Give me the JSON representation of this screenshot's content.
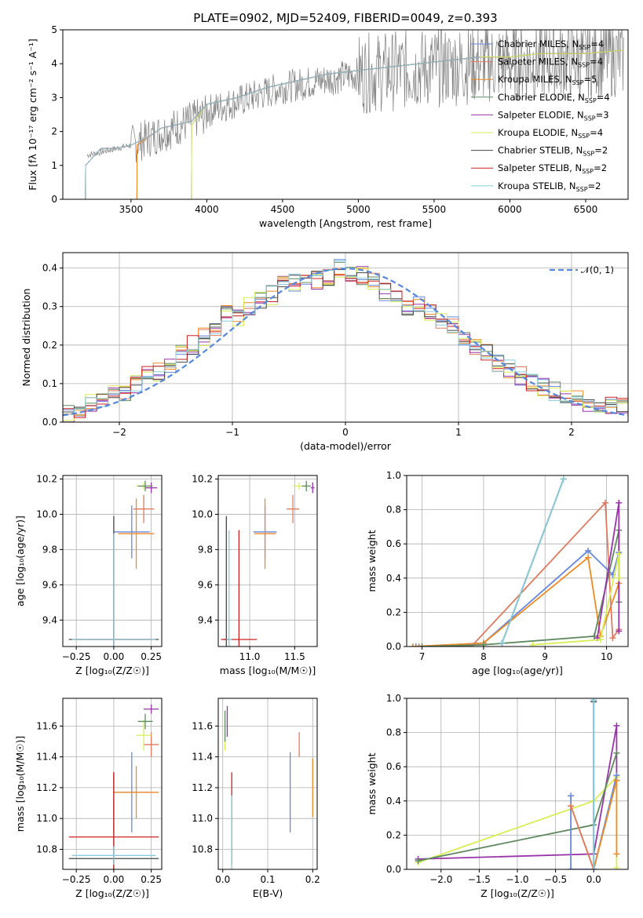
{
  "title": "PLATE=0902, MJD=52409, FIBERID=0049, z=0.393",
  "colors": {
    "Chabrier MILES": "#6688dd",
    "Salpeter MILES": "#e07a5f",
    "Kroupa MILES": "#f08a24",
    "Chabrier ELODIE": "#5f8a60",
    "Salpeter ELODIE": "#9933aa",
    "Kroupa ELODIE": "#d9ee55",
    "Chabrier STELIB": "#444444",
    "Salpeter STELIB": "#cc2222",
    "Kroupa STELIB": "#88ccdd",
    "data": "#808080",
    "normal": "#5588dd",
    "pink": "#e88ab5"
  },
  "chart_data": [
    {
      "type": "line",
      "title": "PLATE=0902, MJD=52409, FIBERID=0049, z=0.393",
      "xlabel": "wavelength [Angstrom, rest frame]",
      "ylabel": "Flux [f_λ 10^-17 erg cm^-2 s^-1 A^-1]",
      "xlim": [
        3050,
        6780
      ],
      "ylim": [
        0,
        5
      ],
      "xticks": [
        "3500",
        "4000",
        "4500",
        "5000",
        "5500",
        "6000",
        "6500"
      ],
      "yticks": [
        "0",
        "1",
        "2",
        "3",
        "4",
        "5"
      ],
      "series": [
        {
          "name": "Chabrier MILES, N_SSP=4",
          "x": [
            3540,
            3700,
            3800,
            3900,
            4000,
            4200,
            4400,
            4600,
            4800,
            5000,
            5200,
            5400,
            5600,
            5800
          ],
          "y": [
            1.6,
            2.1,
            2.2,
            2.3,
            2.8,
            3.0,
            3.3,
            3.5,
            3.7,
            3.8,
            3.9,
            4.0,
            4.1,
            4.2
          ]
        },
        {
          "name": "Salpeter MILES, N_SSP=4",
          "x": [
            3540,
            3700,
            3800,
            3900,
            4000,
            4200,
            4400,
            4600,
            4800,
            5000,
            5200,
            5400,
            5600,
            5800
          ],
          "y": [
            1.6,
            2.1,
            2.2,
            2.3,
            2.8,
            3.0,
            3.3,
            3.5,
            3.7,
            3.8,
            3.9,
            4.0,
            4.1,
            4.2
          ]
        },
        {
          "name": "Kroupa MILES, N_SSP=5",
          "x": [
            3540,
            3700,
            3800,
            3900,
            4000,
            4200,
            4400,
            4600,
            4800,
            5000,
            5200,
            5400,
            5600,
            5800
          ],
          "y": [
            1.6,
            2.1,
            2.2,
            2.3,
            2.8,
            3.0,
            3.3,
            3.5,
            3.7,
            3.8,
            3.9,
            4.0,
            4.1,
            4.2
          ]
        },
        {
          "name": "Chabrier ELODIE, N_SSP=4",
          "x": [
            3900,
            4000,
            4200,
            4400,
            4600,
            4800,
            5000,
            5200,
            5400,
            5600,
            5800,
            6000,
            6200,
            6500,
            6750
          ],
          "y": [
            2.2,
            2.8,
            3.0,
            3.3,
            3.5,
            3.7,
            3.8,
            3.9,
            4.0,
            4.1,
            4.2,
            4.2,
            4.3,
            4.3,
            4.4
          ]
        },
        {
          "name": "Salpeter ELODIE, N_SSP=3",
          "x": [
            3900,
            4000,
            4200,
            4400,
            4600,
            4800,
            5000,
            5200,
            5400,
            5600,
            5800,
            6000,
            6200,
            6500,
            6750
          ],
          "y": [
            2.2,
            2.8,
            3.0,
            3.3,
            3.5,
            3.7,
            3.8,
            3.9,
            4.0,
            4.1,
            4.2,
            4.2,
            4.3,
            4.3,
            4.4
          ]
        },
        {
          "name": "Kroupa ELODIE, N_SSP=4",
          "x": [
            3900,
            4000,
            4200,
            4400,
            4600,
            4800,
            5000,
            5200,
            5400,
            5600,
            5800,
            6000,
            6200,
            6500,
            6750
          ],
          "y": [
            2.2,
            2.8,
            3.0,
            3.3,
            3.5,
            3.7,
            3.8,
            3.9,
            4.0,
            4.1,
            4.2,
            4.2,
            4.3,
            4.3,
            4.4
          ]
        },
        {
          "name": "Chabrier STELIB, N_SSP=2",
          "x": [
            3200,
            3300,
            3400,
            3500,
            3600,
            3700,
            3800,
            3900,
            4000,
            4200,
            4400,
            4600,
            4800,
            5000,
            5200,
            5400,
            5600,
            5800
          ],
          "y": [
            1.0,
            1.5,
            1.5,
            1.6,
            1.8,
            2.1,
            2.2,
            2.3,
            2.8,
            3.0,
            3.3,
            3.5,
            3.7,
            3.8,
            3.9,
            4.0,
            4.1,
            4.2
          ]
        },
        {
          "name": "Salpeter STELIB, N_SSP=2",
          "x": [
            3200,
            3300,
            3400,
            3500,
            3600,
            3700,
            3800,
            3900,
            4000,
            4200,
            4400,
            4600,
            4800,
            5000,
            5200,
            5400,
            5600,
            5800
          ],
          "y": [
            1.0,
            1.5,
            1.5,
            1.6,
            1.8,
            2.1,
            2.2,
            2.3,
            2.8,
            3.0,
            3.3,
            3.5,
            3.7,
            3.8,
            3.9,
            4.0,
            4.1,
            4.2
          ]
        },
        {
          "name": "Kroupa STELIB, N_SSP=2",
          "x": [
            3200,
            3300,
            3400,
            3500,
            3600,
            3700,
            3800,
            3900,
            4000,
            4200,
            4400,
            4600,
            4800,
            5000,
            5200,
            5400,
            5600,
            5800
          ],
          "y": [
            1.0,
            1.5,
            1.5,
            1.6,
            1.8,
            2.1,
            2.2,
            2.3,
            2.8,
            3.0,
            3.3,
            3.5,
            3.7,
            3.8,
            3.9,
            4.0,
            4.1,
            4.2
          ]
        }
      ]
    },
    {
      "type": "line",
      "xlabel": "(data-model)/error",
      "ylabel": "Normed distribution",
      "xlim": [
        -2.5,
        2.5
      ],
      "ylim": [
        0,
        0.44
      ],
      "grid": true,
      "legend": "top-right",
      "legend_label": "𝒩(0, 1)",
      "xticks": [
        "−2",
        "−1",
        "0",
        "1",
        "2"
      ],
      "yticks": [
        "0.0",
        "0.1",
        "0.2",
        "0.3",
        "0.4"
      ],
      "histogram_bins": [
        -2.5,
        2.5,
        50
      ],
      "histogram_values": [
        0.02,
        0.03,
        0.05,
        0.05,
        0.07,
        0.08,
        0.1,
        0.12,
        0.13,
        0.15,
        0.18,
        0.2,
        0.22,
        0.24,
        0.28,
        0.27,
        0.3,
        0.32,
        0.33,
        0.36,
        0.36,
        0.38,
        0.37,
        0.38,
        0.4,
        0.39,
        0.38,
        0.37,
        0.34,
        0.33,
        0.3,
        0.31,
        0.28,
        0.26,
        0.25,
        0.22,
        0.2,
        0.18,
        0.15,
        0.14,
        0.12,
        0.1,
        0.09,
        0.08,
        0.07,
        0.06,
        0.05,
        0.05,
        0.04,
        0.04
      ]
    },
    {
      "type": "scatter",
      "xlabel": "Z [log10(Z/Z☉)]",
      "ylabel": "age  [log10(age/yr)]",
      "xlim": [
        -0.34,
        0.32
      ],
      "ylim": [
        9.25,
        10.22
      ],
      "grid": true,
      "xticks": [
        "−0.25",
        "0.00",
        "0.25"
      ],
      "yticks": [
        "9.4",
        "9.6",
        "9.8",
        "10.0",
        "10.2"
      ],
      "points": [
        {
          "series": "Chabrier MILES",
          "x": 0.12,
          "y": 9.9,
          "xerr": 0.12,
          "yerr": 0.15
        },
        {
          "series": "Kroupa MILES",
          "x": 0.15,
          "y": 9.89,
          "xerr": 0.12,
          "yerr": 0.2
        },
        {
          "series": "Kroupa ELODIE",
          "x": 0.2,
          "y": 10.16,
          "xerr": 0.05,
          "yerr": 0.02
        },
        {
          "series": "Salpeter ELODIE",
          "x": 0.25,
          "y": 10.15,
          "xerr": 0.04,
          "yerr": 0.03
        },
        {
          "series": "Salpeter MILES",
          "x": 0.2,
          "y": 10.03,
          "xerr": 0.07,
          "yerr": 0.08
        },
        {
          "series": "Chabrier ELODIE",
          "x": 0.21,
          "y": 10.16,
          "xerr": 0.05,
          "yerr": 0.03
        },
        {
          "series": "Chabrier STELIB",
          "x": 0.0,
          "y": 9.29,
          "xerr": 0.3,
          "yerr": 0.7
        },
        {
          "series": "Salpeter STELIB",
          "x": 0.0,
          "y": 9.29,
          "xerr": 0.25,
          "yerr": 0.6
        },
        {
          "series": "Kroupa STELIB",
          "x": 0.0,
          "y": 9.29,
          "xerr": 0.28,
          "yerr": 0.6
        }
      ]
    },
    {
      "type": "scatter",
      "xlabel": "mass [log10(M/M☉)]",
      "ylim": [
        9.25,
        10.22
      ],
      "xlim": [
        10.65,
        11.75
      ],
      "grid": true,
      "xticks": [
        "11.0",
        "11.5"
      ],
      "yticks": [
        "9.4",
        "9.6",
        "9.8",
        "10.0",
        "10.2"
      ],
      "points": [
        {
          "series": "Chabrier MILES",
          "x": 11.17,
          "y": 9.9,
          "xerr": 0.13,
          "yerr": 0.15
        },
        {
          "series": "Kroupa MILES",
          "x": 11.17,
          "y": 9.89,
          "xerr": 0.12,
          "yerr": 0.2
        },
        {
          "series": "Salpeter MILES",
          "x": 11.48,
          "y": 10.03,
          "xerr": 0.07,
          "yerr": 0.08
        },
        {
          "series": "Kroupa ELODIE",
          "x": 11.55,
          "y": 10.16,
          "xerr": 0.07,
          "yerr": 0.02
        },
        {
          "series": "Salpeter ELODIE",
          "x": 11.7,
          "y": 10.15,
          "xerr": 0.02,
          "yerr": 0.03
        },
        {
          "series": "Chabrier ELODIE",
          "x": 11.63,
          "y": 10.16,
          "xerr": 0.05,
          "yerr": 0.03
        },
        {
          "series": "Chabrier STELIB",
          "x": 10.74,
          "y": 9.29,
          "xerr": 0.03,
          "yerr": 0.7
        },
        {
          "series": "Salpeter STELIB",
          "x": 10.88,
          "y": 9.29,
          "xerr": 0.2,
          "yerr": 0.62
        },
        {
          "series": "Kroupa STELIB",
          "x": 10.77,
          "y": 9.29,
          "xerr": 0.03,
          "yerr": 0.62
        }
      ]
    },
    {
      "type": "line",
      "xlabel": "age  [log10(age/yr)]",
      "ylabel": "mass weight",
      "xlim": [
        6.75,
        10.35
      ],
      "ylim": [
        0,
        1.0
      ],
      "grid": true,
      "xticks": [
        "7",
        "8",
        "9",
        "10"
      ],
      "yticks": [
        "0.0",
        "0.2",
        "0.4",
        "0.6",
        "0.8",
        "1.0"
      ],
      "series": [
        {
          "series": "Chabrier MILES",
          "x": [
            6.9,
            8.0,
            9.7,
            10.1,
            10.2
          ],
          "y": [
            0.0,
            0.02,
            0.56,
            0.42,
            0.55
          ]
        },
        {
          "series": "Kroupa MILES",
          "x": [
            6.85,
            8.0,
            9.7,
            9.9,
            10.2
          ],
          "y": [
            0.0,
            0.02,
            0.52,
            0.06,
            0.37
          ]
        },
        {
          "series": "Salpeter MILES",
          "x": [
            6.95,
            7.8,
            9.98,
            10.1,
            10.2
          ],
          "y": [
            0.0,
            0.0,
            0.84,
            0.05,
            0.1
          ]
        },
        {
          "series": "Chabrier ELODIE",
          "x": [
            7.0,
            8.0,
            9.8,
            10.2,
            10.2
          ],
          "y": [
            0.0,
            0.01,
            0.06,
            0.68,
            0.26
          ]
        },
        {
          "series": "Salpeter ELODIE",
          "x": [
            9.85,
            10.2,
            10.2
          ],
          "y": [
            0.05,
            0.84,
            0.09
          ]
        },
        {
          "series": "Kroupa ELODIE",
          "x": [
            8.8,
            9.9,
            10.2,
            10.2
          ],
          "y": [
            0.01,
            0.04,
            0.54,
            0.4
          ]
        },
        {
          "series": "Chabrier STELIB",
          "x": [
            8.3,
            9.3
          ],
          "y": [
            0.02,
            0.98
          ]
        },
        {
          "series": "Kroupa STELIB",
          "x": [
            8.3,
            9.3
          ],
          "y": [
            0.02,
            0.98
          ]
        }
      ]
    },
    {
      "type": "scatter",
      "xlabel": "Z [log10(Z/Z☉)]",
      "ylabel": "mass [log10(M/M☉)]",
      "xlim": [
        -0.34,
        0.32
      ],
      "ylim": [
        10.67,
        11.78
      ],
      "grid": true,
      "xticks": [
        "−0.25",
        "0.00",
        "0.25"
      ],
      "yticks": [
        "10.8",
        "11.0",
        "11.2",
        "11.4",
        "11.6"
      ],
      "points": [
        {
          "series": "Chabrier MILES",
          "x": 0.12,
          "y": 11.17,
          "xerr": 0.12,
          "yerr": 0.26
        },
        {
          "series": "Kroupa MILES",
          "x": 0.15,
          "y": 11.17,
          "xerr": 0.15,
          "yerr": 0.17
        },
        {
          "series": "Salpeter MILES",
          "x": 0.25,
          "y": 11.48,
          "xerr": 0.05,
          "yerr": 0.08
        },
        {
          "series": "Kroupa ELODIE",
          "x": 0.2,
          "y": 11.54,
          "xerr": 0.05,
          "yerr": 0.1
        },
        {
          "series": "Salpeter ELODIE",
          "x": 0.25,
          "y": 11.71,
          "xerr": 0.05,
          "yerr": 0.03
        },
        {
          "series": "Chabrier ELODIE",
          "x": 0.21,
          "y": 11.63,
          "xerr": 0.05,
          "yerr": 0.05
        },
        {
          "series": "Chabrier STELIB",
          "x": 0.0,
          "y": 10.74,
          "xerr": 0.3,
          "yerr": 0.56
        },
        {
          "series": "Salpeter STELIB",
          "x": 0.0,
          "y": 10.88,
          "xerr": 0.3,
          "yerr": 0.42
        },
        {
          "series": "Kroupa STELIB",
          "x": 0.0,
          "y": 10.76,
          "xerr": 0.28,
          "yerr": 0.06
        }
      ]
    },
    {
      "type": "scatter",
      "xlabel": "E(B-V)",
      "xlim": [
        -0.01,
        0.21
      ],
      "ylim": [
        10.67,
        11.78
      ],
      "grid": true,
      "xticks": [
        "0.0",
        "0.1",
        "0.2"
      ],
      "yticks": [
        "10.8",
        "11.0",
        "11.2",
        "11.4",
        "11.6"
      ],
      "points": [
        {
          "series": "Chabrier MILES",
          "x": 0.15,
          "y": 11.17,
          "yerr": 0.26
        },
        {
          "series": "Kroupa MILES",
          "x": 0.2,
          "y": 11.2,
          "yerr": 0.19
        },
        {
          "series": "Salpeter MILES",
          "x": 0.17,
          "y": 11.48,
          "yerr": 0.08
        },
        {
          "series": "Kroupa ELODIE",
          "x": 0.005,
          "y": 11.54,
          "yerr": 0.1
        },
        {
          "series": "Salpeter ELODIE",
          "x": 0.01,
          "y": 11.63,
          "yerr": 0.1
        },
        {
          "series": "Chabrier ELODIE",
          "x": 0.005,
          "y": 11.6,
          "yerr": 0.1
        },
        {
          "series": "Chabrier STELIB",
          "x": 0.02,
          "y": 10.9,
          "yerr": 0.2
        },
        {
          "series": "Salpeter STELIB",
          "x": 0.02,
          "y": 11.2,
          "yerr": 0.1
        },
        {
          "series": "Kroupa STELIB",
          "x": 0.02,
          "y": 10.9,
          "yerr": 0.25
        }
      ]
    },
    {
      "type": "line",
      "xlabel": "Z [log10(Z/Z☉)]",
      "ylabel": "mass weight",
      "xlim": [
        -2.45,
        0.45
      ],
      "ylim": [
        0,
        1.0
      ],
      "grid": true,
      "xticks": [
        "−2.0",
        "−1.5",
        "−1.0",
        "−0.5",
        "0.0"
      ],
      "yticks": [
        "0.0",
        "0.2",
        "0.4",
        "0.6",
        "0.8",
        "1.0"
      ],
      "series": [
        {
          "series": "Salpeter ELODIE",
          "x": [
            -2.3,
            0.0,
            0.3,
            0.3
          ],
          "y": [
            0.06,
            0.09,
            0.84,
            0.52
          ]
        },
        {
          "series": "Kroupa ELODIE",
          "x": [
            -2.3,
            0.0,
            0.3,
            0.3
          ],
          "y": [
            0.04,
            0.4,
            0.54,
            0.01
          ]
        },
        {
          "series": "Chabrier ELODIE",
          "x": [
            -2.3,
            0.0,
            0.3
          ],
          "y": [
            0.05,
            0.26,
            0.68
          ]
        },
        {
          "series": "Chabrier MILES",
          "x": [
            -0.3,
            -0.3,
            0.0,
            0.3
          ],
          "y": [
            0.43,
            0.0,
            0.0,
            0.55
          ]
        },
        {
          "series": "Kroupa MILES",
          "x": [
            -0.3,
            0.0,
            0.3,
            0.3
          ],
          "y": [
            0.37,
            0.0,
            0.52,
            0.09
          ]
        },
        {
          "series": "Salpeter MILES",
          "x": [
            -0.3,
            0.0
          ],
          "y": [
            0.37,
            0.0
          ]
        },
        {
          "series": "Chabrier STELIB",
          "x": [
            0.0,
            0.0
          ],
          "y": [
            0.0,
            0.98
          ]
        },
        {
          "series": "Kroupa STELIB",
          "x": [
            0.0,
            0.0
          ],
          "y": [
            0.0,
            0.99
          ]
        }
      ]
    }
  ]
}
